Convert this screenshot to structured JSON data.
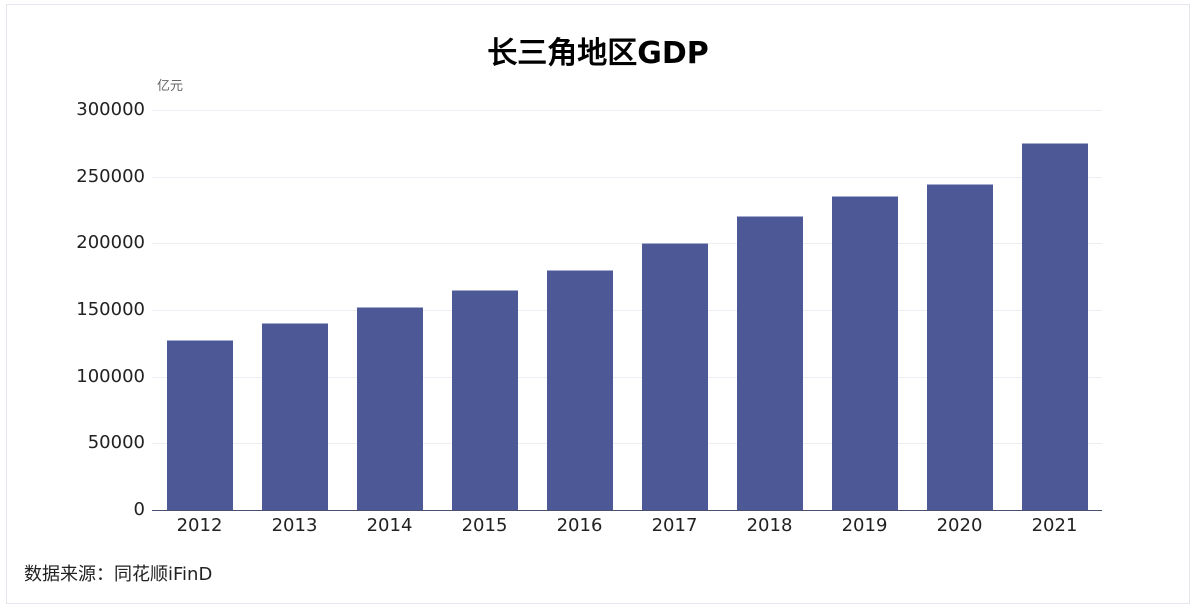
{
  "chart_data": {
    "type": "bar",
    "title": "长三角地区GDP",
    "ylabel": "亿元",
    "xlabel": "",
    "categories": [
      "2012",
      "2013",
      "2014",
      "2015",
      "2016",
      "2017",
      "2018",
      "2019",
      "2020",
      "2021"
    ],
    "values": [
      127500,
      140300,
      152300,
      165000,
      180000,
      200300,
      220500,
      235500,
      244700,
      275200
    ],
    "ylim": [
      0,
      300000
    ],
    "yticks": [
      "0",
      "50000",
      "100000",
      "150000",
      "200000",
      "250000",
      "300000"
    ],
    "grid": true,
    "legend": null,
    "bar_color": "#4d5897",
    "source": "数据来源：同花顺iFinD"
  }
}
